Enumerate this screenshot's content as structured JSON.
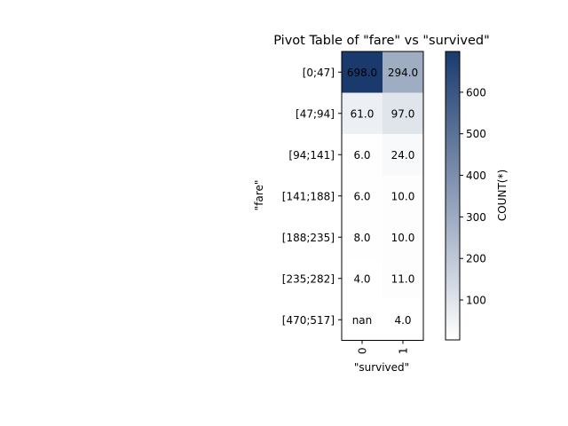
{
  "chart_data": {
    "type": "heatmap",
    "title": "Pivot Table of \"fare\" vs \"survived\"",
    "xlabel": "\"survived\"",
    "ylabel": "\"fare\"",
    "x_categories": [
      "0",
      "1"
    ],
    "y_categories": [
      "[0;47]",
      "[47;94]",
      "[94;141]",
      "[141;188]",
      "[188;235]",
      "[235;282]",
      "[470;517]"
    ],
    "values": [
      [
        698.0,
        294.0
      ],
      [
        61.0,
        97.0
      ],
      [
        6.0,
        24.0
      ],
      [
        6.0,
        10.0
      ],
      [
        8.0,
        10.0
      ],
      [
        4.0,
        11.0
      ],
      [
        null,
        4.0
      ]
    ],
    "cell_labels": [
      [
        "698.0",
        "294.0"
      ],
      [
        "61.0",
        "97.0"
      ],
      [
        "6.0",
        "24.0"
      ],
      [
        "6.0",
        "10.0"
      ],
      [
        "8.0",
        "10.0"
      ],
      [
        "4.0",
        "11.0"
      ],
      [
        "nan",
        "4.0"
      ]
    ],
    "colorbar": {
      "label": "COUNT(*)",
      "min": 4.0,
      "max": 698.0,
      "ticks": [
        100,
        200,
        300,
        400,
        500,
        600
      ],
      "tick_labels": [
        "100",
        "200",
        "300",
        "400",
        "500",
        "600"
      ],
      "colors": [
        "#ffffff",
        "#1a3a6e"
      ]
    }
  }
}
